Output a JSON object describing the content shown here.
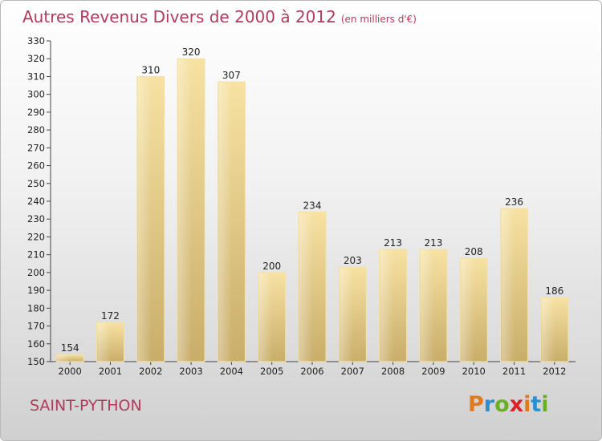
{
  "header": {
    "title": "Autres Revenus Divers de 2000 à 2012",
    "subtitle": "(en milliers d'€)"
  },
  "footer": {
    "city": "SAINT-PYTHON",
    "logo": {
      "letters": [
        "P",
        "r",
        "o",
        "x",
        "i",
        "t",
        "i"
      ],
      "colors": [
        "#e07a1f",
        "#2a8fd0",
        "#6ab023",
        "#d8232a",
        "#e07a1f",
        "#2a8fd0",
        "#6ab023"
      ]
    }
  },
  "chart_data": {
    "type": "bar",
    "title": "Autres Revenus Divers de 2000 à 2012",
    "subtitle": "(en milliers d'€)",
    "categories": [
      "2000",
      "2001",
      "2002",
      "2003",
      "2004",
      "2005",
      "2006",
      "2007",
      "2008",
      "2009",
      "2010",
      "2011",
      "2012"
    ],
    "values": [
      154,
      172,
      310,
      320,
      307,
      200,
      234,
      203,
      213,
      213,
      208,
      236,
      186
    ],
    "ylim": [
      150,
      330
    ],
    "yticks": [
      150,
      160,
      170,
      180,
      190,
      200,
      210,
      220,
      230,
      240,
      250,
      260,
      270,
      280,
      290,
      300,
      310,
      320,
      330
    ],
    "grid": false,
    "bar_color": "#e6cd8a",
    "xlabel": "",
    "ylabel": ""
  }
}
